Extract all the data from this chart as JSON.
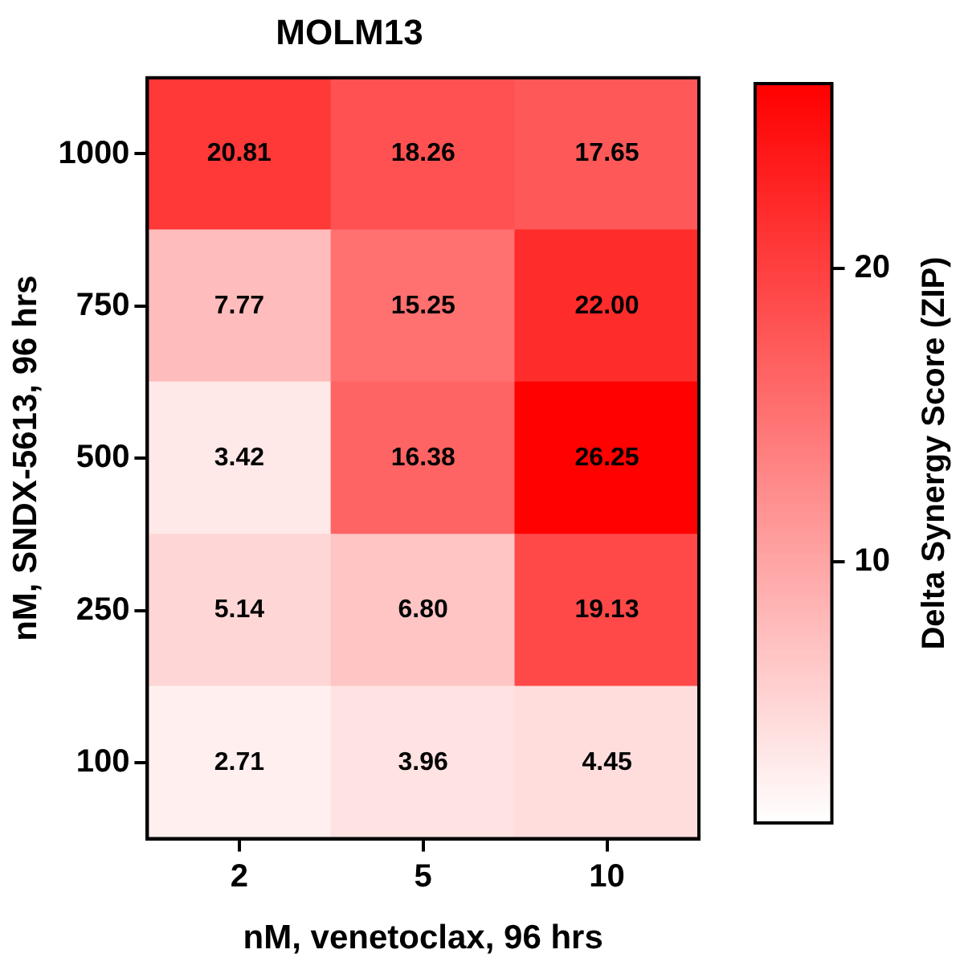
{
  "chart_data": {
    "type": "heatmap",
    "title": "MOLM13",
    "xlabel": "nM, venetoclax, 96 hrs",
    "ylabel": "nM, SNDX-5613, 96 hrs",
    "clabel": "Delta Synergy Score (ZIP)",
    "categories": [
      "2",
      "5",
      "10"
    ],
    "y_categories": [
      "1000",
      "750",
      "500",
      "250",
      "100"
    ],
    "cells": [
      [
        20.81,
        18.26,
        17.65
      ],
      [
        7.77,
        15.25,
        22.0
      ],
      [
        3.42,
        16.38,
        26.25
      ],
      [
        5.14,
        6.8,
        19.13
      ],
      [
        2.71,
        3.96,
        4.45
      ]
    ],
    "cell_labels": [
      [
        "20.81",
        "18.26",
        "17.65"
      ],
      [
        "7.77",
        "15.25",
        "22.00"
      ],
      [
        "3.42",
        "16.38",
        "26.25"
      ],
      [
        "5.14",
        "6.80",
        "19.13"
      ],
      [
        "2.71",
        "3.96",
        "4.45"
      ]
    ],
    "clim": [
      1.1,
      26.3
    ],
    "cticks": [
      10,
      20
    ]
  }
}
